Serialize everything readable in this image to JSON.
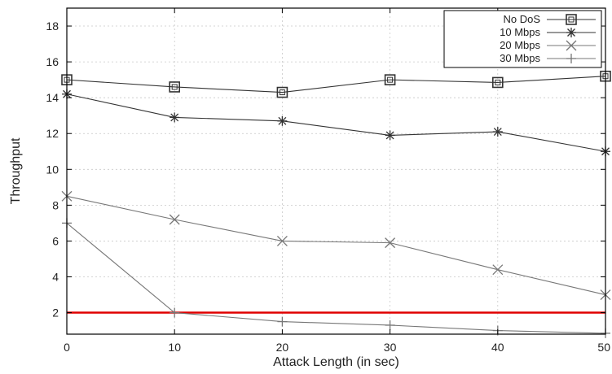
{
  "chart_data": {
    "type": "line",
    "xlabel": "Attack Length (in sec)",
    "ylabel": "Throughput",
    "x": [
      0,
      10,
      20,
      30,
      40,
      50
    ],
    "xlim": [
      0,
      50
    ],
    "ylim": [
      0.8,
      19
    ],
    "xticks": [
      "0",
      "10",
      "20",
      "30",
      "40",
      "50"
    ],
    "yticks": [
      "2",
      "4",
      "6",
      "8",
      "10",
      "12",
      "14",
      "16",
      "18"
    ],
    "legend_position": "top-right",
    "series": [
      {
        "name": "No DoS",
        "marker": "square",
        "color": "#333333",
        "values": [
          15.0,
          14.6,
          14.3,
          15.0,
          14.85,
          15.2
        ]
      },
      {
        "name": "10 Mbps",
        "marker": "asterisk",
        "color": "#333333",
        "values": [
          14.2,
          12.9,
          12.7,
          11.9,
          12.1,
          11.0
        ]
      },
      {
        "name": "20 Mbps",
        "marker": "x",
        "color": "#777777",
        "values": [
          8.5,
          7.2,
          6.0,
          5.9,
          4.4,
          3.0
        ]
      },
      {
        "name": "30 Mbps",
        "marker": "plus",
        "color": "#777777",
        "values": [
          7.0,
          2.0,
          1.5,
          1.3,
          1.0,
          0.85
        ]
      }
    ],
    "reference_line": {
      "y": 2,
      "color": "#e00000"
    }
  }
}
